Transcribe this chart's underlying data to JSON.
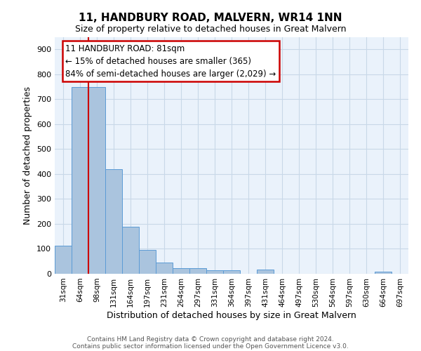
{
  "title": "11, HANDBURY ROAD, MALVERN, WR14 1NN",
  "subtitle": "Size of property relative to detached houses in Great Malvern",
  "xlabel": "Distribution of detached houses by size in Great Malvern",
  "ylabel": "Number of detached properties",
  "categories": [
    "31sqm",
    "64sqm",
    "98sqm",
    "131sqm",
    "164sqm",
    "197sqm",
    "231sqm",
    "264sqm",
    "297sqm",
    "331sqm",
    "364sqm",
    "397sqm",
    "431sqm",
    "464sqm",
    "497sqm",
    "530sqm",
    "564sqm",
    "597sqm",
    "630sqm",
    "664sqm",
    "697sqm"
  ],
  "values": [
    112,
    748,
    750,
    420,
    190,
    95,
    45,
    22,
    22,
    15,
    15,
    0,
    18,
    0,
    0,
    0,
    0,
    0,
    0,
    8,
    0
  ],
  "bar_color": "#aac4de",
  "bar_edge_color": "#5b9bd5",
  "grid_color": "#c8d8e8",
  "bg_color": "#eaf2fb",
  "annotation_line1": "11 HANDBURY ROAD: 81sqm",
  "annotation_line2": "← 15% of detached houses are smaller (365)",
  "annotation_line3": "84% of semi-detached houses are larger (2,029) →",
  "annotation_box_color": "#ffffff",
  "annotation_box_edge": "#cc0000",
  "property_line_x": 1.515,
  "ylim": [
    0,
    950
  ],
  "yticks": [
    0,
    100,
    200,
    300,
    400,
    500,
    600,
    700,
    800,
    900
  ],
  "footer_line1": "Contains HM Land Registry data © Crown copyright and database right 2024.",
  "footer_line2": "Contains public sector information licensed under the Open Government Licence v3.0."
}
